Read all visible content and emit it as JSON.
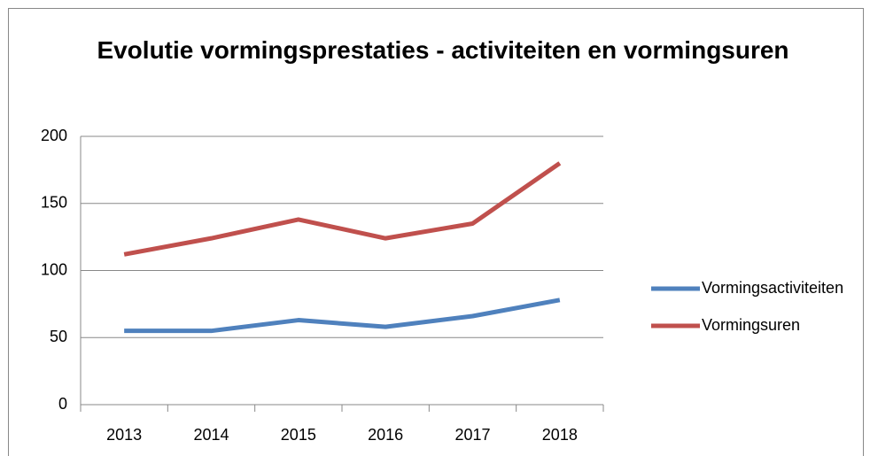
{
  "chart_data": {
    "type": "line",
    "title": "Evolutie vormingsprestaties - activiteiten en vormingsuren",
    "categories": [
      "2013",
      "2014",
      "2015",
      "2016",
      "2017",
      "2018"
    ],
    "series": [
      {
        "name": "Vormingsactiviteiten",
        "color": "#4f81bd",
        "values": [
          55,
          55,
          63,
          58,
          66,
          78
        ]
      },
      {
        "name": "Vormingsuren",
        "color": "#c0504d",
        "values": [
          112,
          124,
          138,
          124,
          135,
          180
        ]
      }
    ],
    "ylim": [
      0,
      200
    ],
    "yticks": [
      0,
      50,
      100,
      150,
      200
    ],
    "grid": true,
    "legend": "right"
  }
}
